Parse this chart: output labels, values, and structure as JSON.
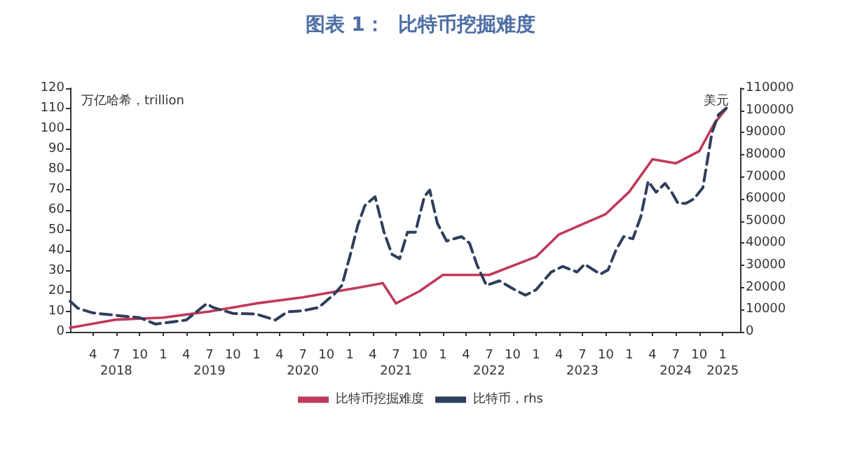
{
  "chart_data": {
    "type": "line",
    "title": "图表 1：  比特币挖掘难度",
    "ylabel": "万亿哈希，trillion",
    "y2label": "美元",
    "xlim": [
      "2018-01-01",
      "2025-03-10"
    ],
    "xticks": [
      {
        "value": "2018-04",
        "label": "4"
      },
      {
        "value": "2018-07",
        "label": "7"
      },
      {
        "value": "2018-10",
        "label": "10"
      },
      {
        "value": "2019-01",
        "label": "1"
      },
      {
        "value": "2019-04",
        "label": "4"
      },
      {
        "value": "2019-07",
        "label": "7"
      },
      {
        "value": "2019-10",
        "label": "10"
      },
      {
        "value": "2020-01",
        "label": "1"
      },
      {
        "value": "2020-04",
        "label": "4"
      },
      {
        "value": "2020-07",
        "label": "7"
      },
      {
        "value": "2020-10",
        "label": "10"
      },
      {
        "value": "2021-01",
        "label": "1"
      },
      {
        "value": "2021-04",
        "label": "4"
      },
      {
        "value": "2021-07",
        "label": "7"
      },
      {
        "value": "2021-10",
        "label": "10"
      },
      {
        "value": "2022-01",
        "label": "1"
      },
      {
        "value": "2022-04",
        "label": "4"
      },
      {
        "value": "2022-07",
        "label": "7"
      },
      {
        "value": "2022-10",
        "label": "10"
      },
      {
        "value": "2023-01",
        "label": "1"
      },
      {
        "value": "2023-04",
        "label": "4"
      },
      {
        "value": "2023-07",
        "label": "7"
      },
      {
        "value": "2023-10",
        "label": "10"
      },
      {
        "value": "2024-01",
        "label": "1"
      },
      {
        "value": "2024-04",
        "label": "4"
      },
      {
        "value": "2024-07",
        "label": "7"
      },
      {
        "value": "2024-10",
        "label": "10"
      },
      {
        "value": "2025-01",
        "label": "1"
      }
    ],
    "x2lim": [
      "2018-01-01",
      "2025-03-10"
    ],
    "x2ticks": [
      {
        "value": "2018-07",
        "label": "2018"
      },
      {
        "value": "2019-07",
        "label": "2019"
      },
      {
        "value": "2020-07",
        "label": "2020"
      },
      {
        "value": "2021-07",
        "label": "2021"
      },
      {
        "value": "2022-07",
        "label": "2022"
      },
      {
        "value": "2023-07",
        "label": "2023"
      },
      {
        "value": "2024-07",
        "label": "2024"
      },
      {
        "value": "2025-01",
        "label": "2025"
      }
    ],
    "ylim": [
      0,
      120
    ],
    "yticks": [
      0,
      10,
      20,
      30,
      40,
      50,
      60,
      70,
      80,
      90,
      100,
      110,
      120
    ],
    "y2lim": [
      0,
      110000
    ],
    "y2ticks": [
      0,
      10000,
      20000,
      30000,
      40000,
      50000,
      60000,
      70000,
      80000,
      90000,
      100000,
      110000
    ],
    "grid": false,
    "legend": "bottom",
    "marker": "none",
    "series": [
      {
        "name": "比特币挖掘难度",
        "color": "#c0395a",
        "line_style": "solid",
        "x": [
          "2018-01-01",
          "2018-07-01",
          "2019-01-01",
          "2019-07-01",
          "2020-01-01",
          "2020-07-01",
          "2021-01-01",
          "2021-05-10",
          "2021-07-01",
          "2021-10-01",
          "2022-01-01",
          "2022-07-01",
          "2023-01-01",
          "2023-04-01",
          "2023-07-01",
          "2023-10-01",
          "2024-01-01",
          "2024-04-01",
          "2024-07-01",
          "2024-10-01",
          "2024-12-01",
          "2025-01-15"
        ],
        "values": [
          2,
          6,
          7,
          10,
          14,
          17,
          21,
          24,
          14,
          20,
          28,
          28,
          37,
          48,
          53,
          58,
          69,
          85,
          83,
          89,
          103,
          110
        ]
      },
      {
        "name": "比特币，rhs",
        "color": "#2f3e5c",
        "axis": "y2",
        "line_style": "dashed",
        "x": [
          "2018-01-01",
          "2018-02-01",
          "2018-04-01",
          "2018-07-01",
          "2018-10-01",
          "2018-12-01",
          "2019-04-01",
          "2019-06-20",
          "2019-07-15",
          "2019-10-01",
          "2020-01-01",
          "2020-03-15",
          "2020-05-01",
          "2020-07-01",
          "2020-09-01",
          "2020-11-01",
          "2020-12-01",
          "2021-01-01",
          "2021-02-01",
          "2021-03-01",
          "2021-04-10",
          "2021-05-15",
          "2021-06-15",
          "2021-07-15",
          "2021-08-15",
          "2021-09-15",
          "2021-10-20",
          "2021-11-10",
          "2021-12-10",
          "2022-01-15",
          "2022-03-15",
          "2022-04-15",
          "2022-05-15",
          "2022-06-20",
          "2022-08-10",
          "2022-10-01",
          "2022-11-20",
          "2023-01-01",
          "2023-03-01",
          "2023-04-15",
          "2023-06-10",
          "2023-07-10",
          "2023-09-10",
          "2023-10-10",
          "2023-11-10",
          "2023-12-10",
          "2024-01-15",
          "2024-02-15",
          "2024-03-15",
          "2024-04-15",
          "2024-05-20",
          "2024-06-15",
          "2024-07-10",
          "2024-08-10",
          "2024-09-10",
          "2024-10-15",
          "2024-11-20",
          "2024-12-15",
          "2025-01-15"
        ],
        "values": [
          13800,
          10600,
          8500,
          7400,
          6400,
          3500,
          5300,
          12700,
          11000,
          8300,
          8000,
          5300,
          9000,
          9500,
          11000,
          17000,
          21000,
          34000,
          48000,
          57000,
          61000,
          45000,
          35000,
          33000,
          45000,
          45000,
          61000,
          64000,
          49000,
          41000,
          43000,
          40000,
          30000,
          21000,
          23000,
          19500,
          16500,
          19000,
          27000,
          29500,
          27000,
          30500,
          26000,
          28000,
          37000,
          43000,
          42000,
          52000,
          68000,
          63000,
          67000,
          63000,
          58000,
          58000,
          60000,
          65000,
          90000,
          98000,
          101000
        ]
      }
    ]
  }
}
